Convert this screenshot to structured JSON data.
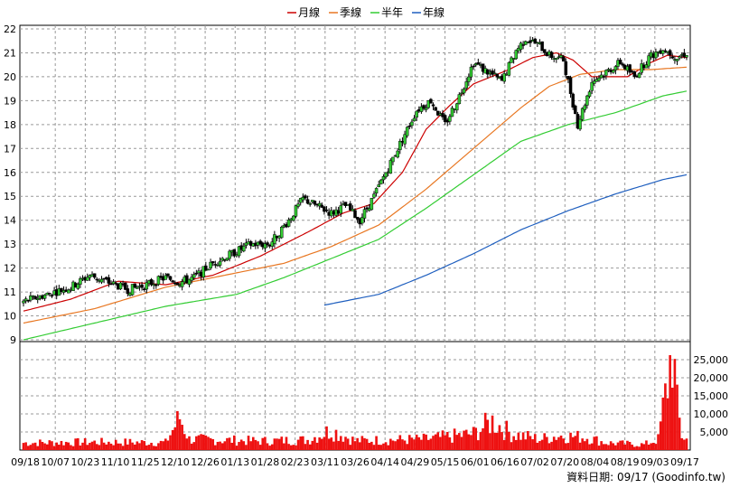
{
  "legend": [
    {
      "label": "月線",
      "color": "#cc0000",
      "key": "ma_month"
    },
    {
      "label": "季線",
      "color": "#e87722",
      "key": "ma_quarter"
    },
    {
      "label": "半年",
      "color": "#33cc33",
      "key": "ma_half"
    },
    {
      "label": "年線",
      "color": "#1f5fbf",
      "key": "ma_year"
    }
  ],
  "source_text": "資料日期: 09/17 (Goodinfo.tw)",
  "chart_data": {
    "type": "candlestick",
    "price_axis": {
      "min": 9,
      "max": 22,
      "ticks": [
        9,
        10,
        11,
        12,
        13,
        14,
        15,
        16,
        17,
        18,
        19,
        20,
        21,
        22
      ]
    },
    "volume_axis": {
      "min": 0,
      "max": 30000,
      "ticks": [
        5000,
        10000,
        15000,
        20000,
        25000
      ],
      "tick_labels": [
        "5,000",
        "10,000",
        "15,000",
        "20,000",
        "25,000"
      ]
    },
    "x_labels": [
      "09/18",
      "10/07",
      "10/23",
      "11/10",
      "11/25",
      "12/10",
      "12/26",
      "01/13",
      "01/28",
      "02/23",
      "03/11",
      "03/26",
      "04/14",
      "04/29",
      "05/15",
      "06/01",
      "06/16",
      "07/02",
      "07/20",
      "08/04",
      "08/19",
      "09/03",
      "09/17"
    ],
    "grid": true,
    "up_color": "#33cc33",
    "down_color": "#000000",
    "volume_color": "#ee1111",
    "price_anchors": [
      [
        0,
        10.6
      ],
      [
        10,
        10.9
      ],
      [
        20,
        11.2
      ],
      [
        28,
        11.7
      ],
      [
        36,
        11.4
      ],
      [
        44,
        11.1
      ],
      [
        52,
        11.3
      ],
      [
        60,
        11.6
      ],
      [
        66,
        11.4
      ],
      [
        72,
        11.6
      ],
      [
        80,
        12.2
      ],
      [
        88,
        12.6
      ],
      [
        96,
        13.0
      ],
      [
        104,
        13.0
      ],
      [
        112,
        14.0
      ],
      [
        118,
        14.9
      ],
      [
        124,
        14.6
      ],
      [
        130,
        14.3
      ],
      [
        136,
        14.6
      ],
      [
        142,
        14.0
      ],
      [
        148,
        15.0
      ],
      [
        154,
        16.2
      ],
      [
        160,
        17.4
      ],
      [
        166,
        18.6
      ],
      [
        172,
        19.0
      ],
      [
        178,
        18.0
      ],
      [
        184,
        19.2
      ],
      [
        190,
        20.6
      ],
      [
        196,
        20.2
      ],
      [
        202,
        19.8
      ],
      [
        208,
        21.1
      ],
      [
        212,
        21.6
      ],
      [
        218,
        21.3
      ],
      [
        222,
        20.9
      ],
      [
        228,
        20.7
      ],
      [
        234,
        18.0
      ],
      [
        240,
        19.8
      ],
      [
        246,
        20.2
      ],
      [
        252,
        20.6
      ],
      [
        258,
        20.0
      ],
      [
        264,
        20.8
      ],
      [
        270,
        21.2
      ],
      [
        276,
        20.8
      ],
      [
        280,
        21.0
      ]
    ],
    "volume_anchors": [
      [
        0,
        2000
      ],
      [
        30,
        2200
      ],
      [
        60,
        2100
      ],
      [
        66,
        9000
      ],
      [
        70,
        3000
      ],
      [
        100,
        2500
      ],
      [
        120,
        2800
      ],
      [
        130,
        5500
      ],
      [
        140,
        2600
      ],
      [
        170,
        3000
      ],
      [
        190,
        4500
      ],
      [
        198,
        8000
      ],
      [
        206,
        4500
      ],
      [
        218,
        3000
      ],
      [
        226,
        4000
      ],
      [
        238,
        3500
      ],
      [
        246,
        2000
      ],
      [
        262,
        1500
      ],
      [
        268,
        3000
      ],
      [
        272,
        19000
      ],
      [
        274,
        29000
      ],
      [
        276,
        12000
      ],
      [
        278,
        4000
      ],
      [
        280,
        3000
      ]
    ],
    "ma_month": [
      [
        0,
        10.2
      ],
      [
        20,
        10.7
      ],
      [
        40,
        11.45
      ],
      [
        60,
        11.3
      ],
      [
        80,
        11.7
      ],
      [
        100,
        12.5
      ],
      [
        120,
        13.5
      ],
      [
        135,
        14.3
      ],
      [
        148,
        14.7
      ],
      [
        160,
        16.0
      ],
      [
        170,
        17.8
      ],
      [
        180,
        18.8
      ],
      [
        190,
        19.7
      ],
      [
        205,
        20.3
      ],
      [
        215,
        20.8
      ],
      [
        225,
        21.0
      ],
      [
        232,
        20.7
      ],
      [
        240,
        20.0
      ],
      [
        255,
        20.0
      ],
      [
        265,
        20.6
      ],
      [
        272,
        20.9
      ],
      [
        280,
        20.8
      ]
    ],
    "ma_quarter": [
      [
        0,
        9.7
      ],
      [
        30,
        10.3
      ],
      [
        60,
        11.2
      ],
      [
        90,
        11.8
      ],
      [
        110,
        12.2
      ],
      [
        130,
        12.9
      ],
      [
        150,
        13.8
      ],
      [
        170,
        15.3
      ],
      [
        190,
        17.0
      ],
      [
        210,
        18.7
      ],
      [
        222,
        19.6
      ],
      [
        235,
        20.1
      ],
      [
        250,
        20.3
      ],
      [
        265,
        20.3
      ],
      [
        280,
        20.4
      ]
    ],
    "ma_half": [
      [
        0,
        9.0
      ],
      [
        30,
        9.7
      ],
      [
        60,
        10.4
      ],
      [
        90,
        10.9
      ],
      [
        110,
        11.6
      ],
      [
        130,
        12.4
      ],
      [
        150,
        13.2
      ],
      [
        170,
        14.5
      ],
      [
        190,
        15.9
      ],
      [
        210,
        17.3
      ],
      [
        230,
        18.0
      ],
      [
        250,
        18.5
      ],
      [
        270,
        19.2
      ],
      [
        280,
        19.4
      ]
    ],
    "ma_year": [
      [
        127,
        10.45
      ],
      [
        150,
        10.9
      ],
      [
        170,
        11.7
      ],
      [
        190,
        12.6
      ],
      [
        210,
        13.6
      ],
      [
        230,
        14.4
      ],
      [
        250,
        15.1
      ],
      [
        270,
        15.7
      ],
      [
        280,
        15.9
      ]
    ]
  }
}
